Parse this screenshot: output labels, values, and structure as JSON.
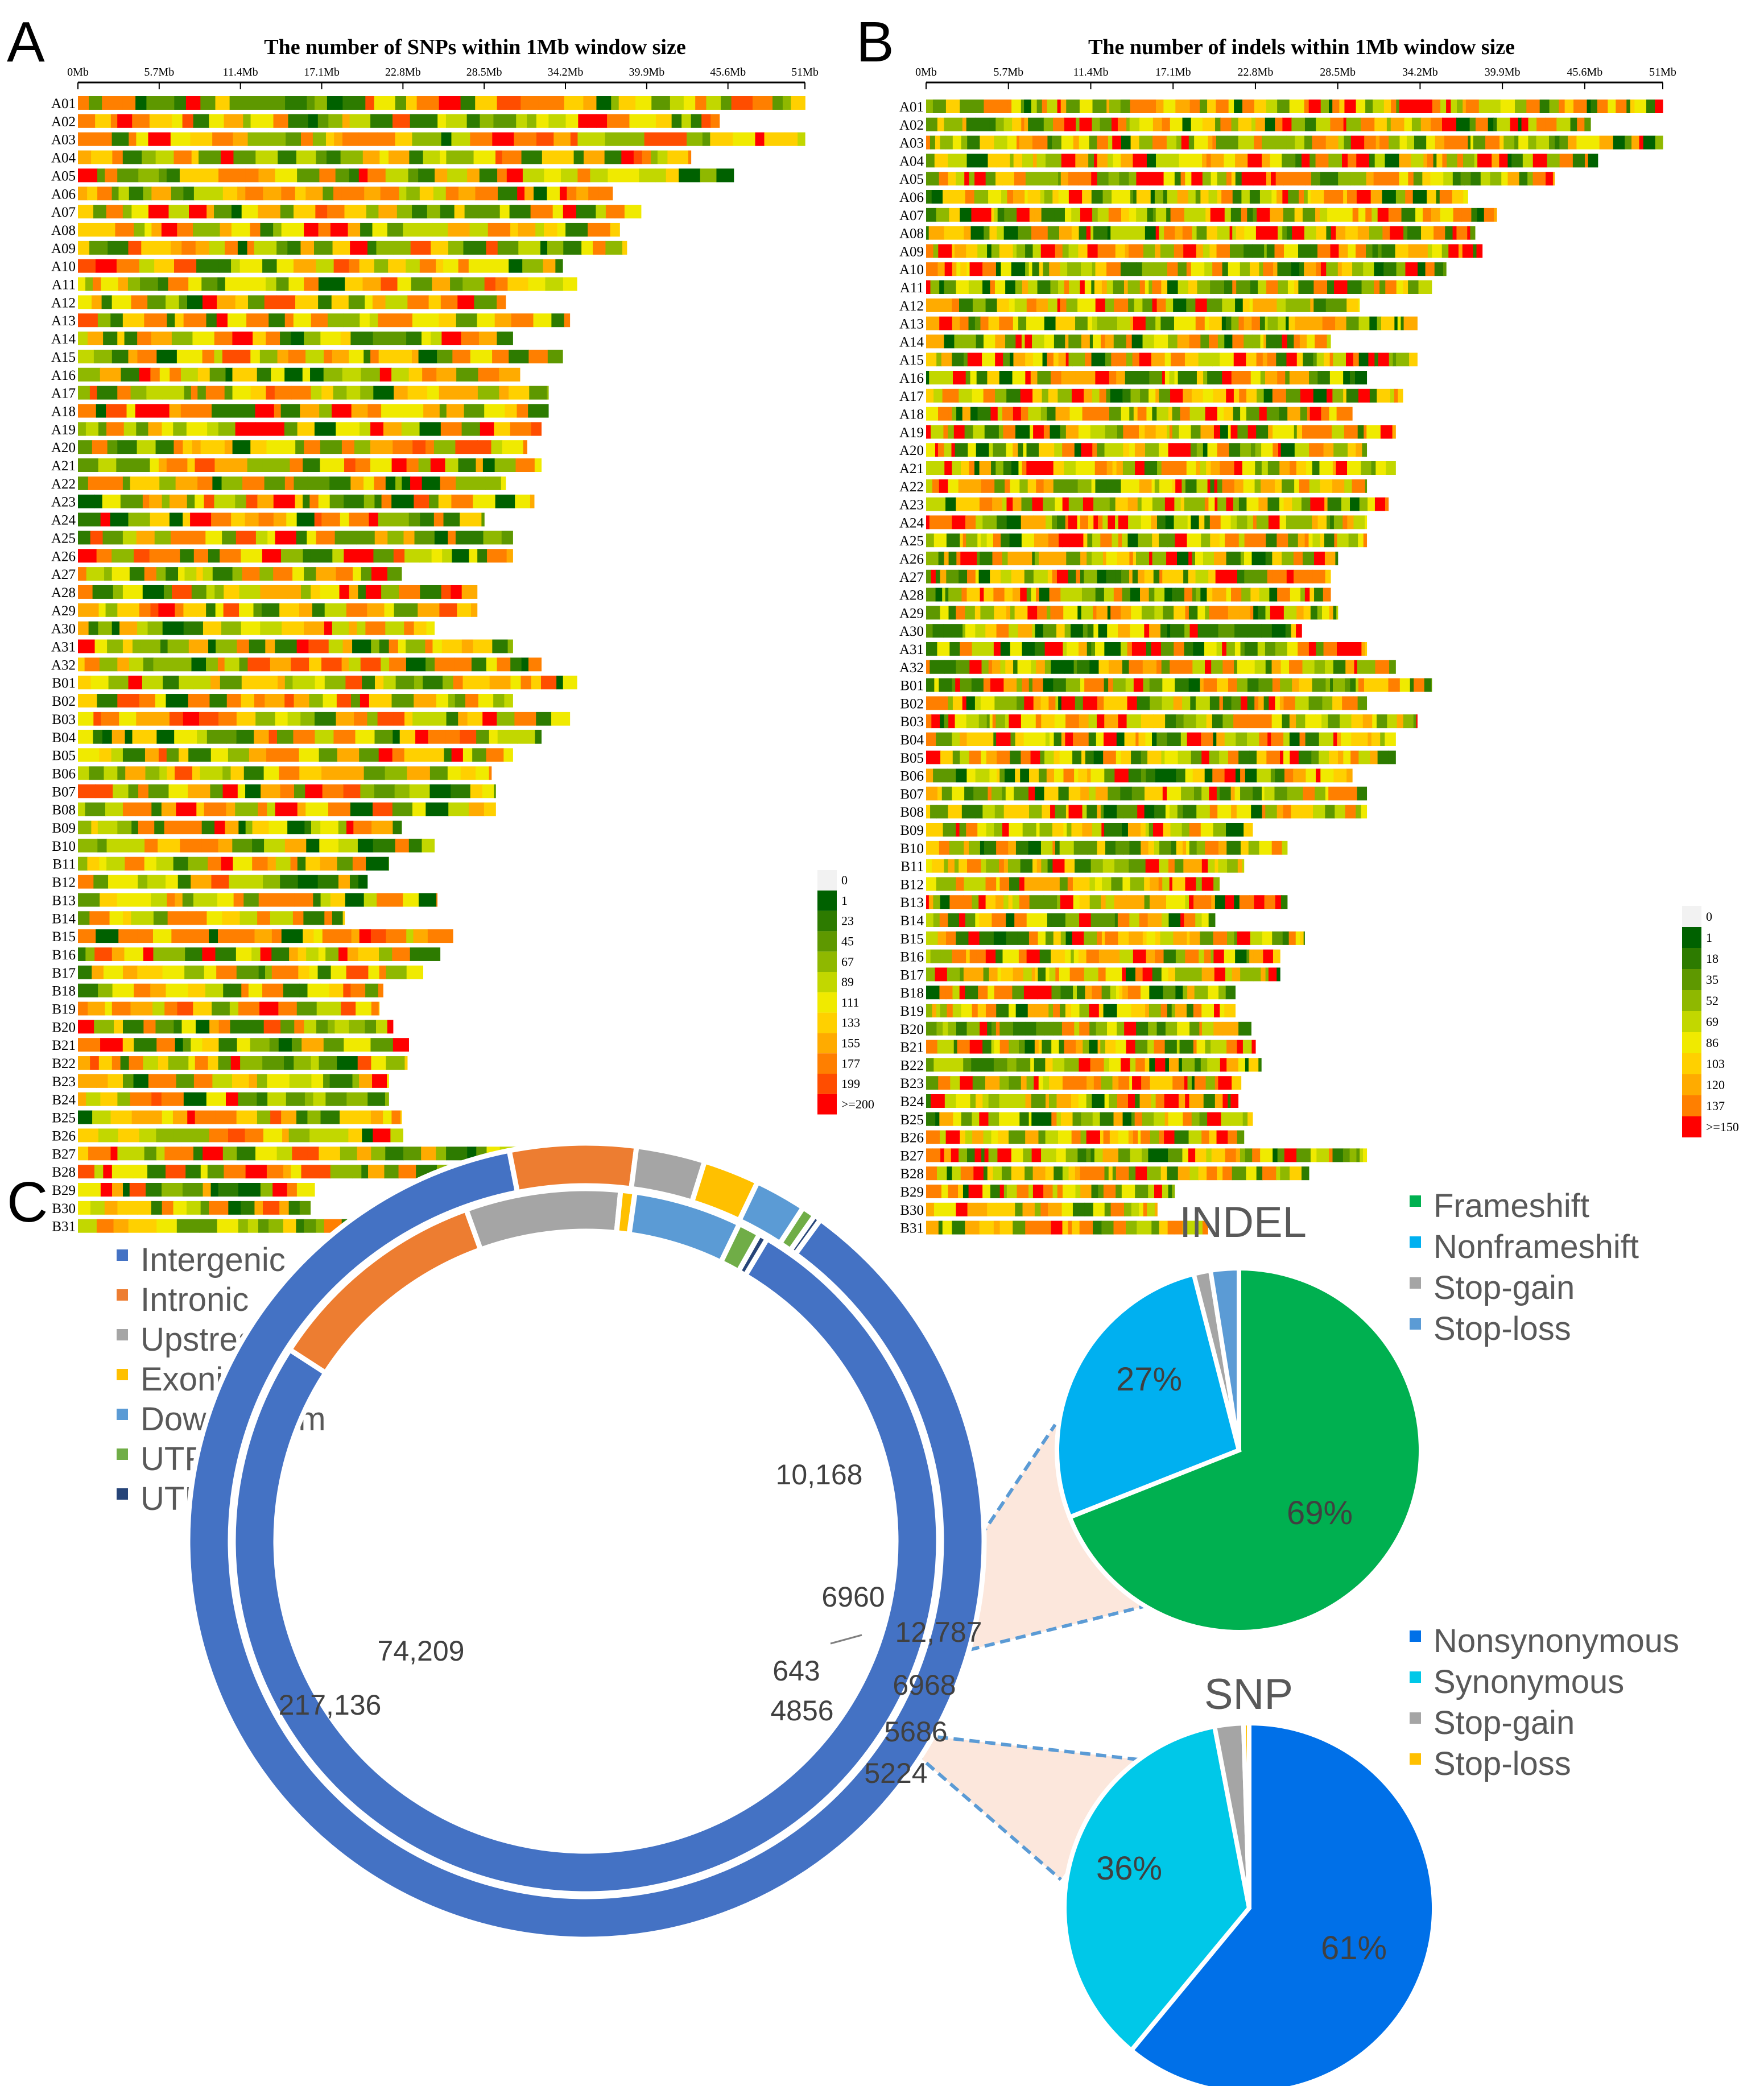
{
  "panels": {
    "a": "A",
    "b": "B",
    "c": "C"
  },
  "chart_data": [
    {
      "type": "heatmap",
      "panel": "A",
      "title": "The number of SNPs within 1Mb window size",
      "x_ticks": [
        "0Mb",
        "5.7Mb",
        "11.4Mb",
        "17.1Mb",
        "22.8Mb",
        "28.5Mb",
        "34.2Mb",
        "39.9Mb",
        "45.6Mb",
        "51Mb"
      ],
      "xlim_mb": [
        0,
        51
      ],
      "rows": [
        "A01",
        "A02",
        "A03",
        "A04",
        "A05",
        "A06",
        "A07",
        "A08",
        "A09",
        "A10",
        "A11",
        "A12",
        "A13",
        "A14",
        "A15",
        "A16",
        "A17",
        "A18",
        "A19",
        "A20",
        "A21",
        "A22",
        "A23",
        "A24",
        "A25",
        "A26",
        "A27",
        "A28",
        "A29",
        "A30",
        "A31",
        "A32",
        "B01",
        "B02",
        "B03",
        "B04",
        "B05",
        "B06",
        "B07",
        "B08",
        "B09",
        "B10",
        "B11",
        "B12",
        "B13",
        "B14",
        "B15",
        "B16",
        "B17",
        "B18",
        "B19",
        "B20",
        "B21",
        "B22",
        "B23",
        "B24",
        "B25",
        "B26",
        "B27",
        "B28",
        "B29",
        "B30",
        "B31"
      ],
      "row_lengths_mb": [
        51,
        45,
        51,
        43,
        46,
        37.5,
        39.5,
        38,
        38.5,
        34,
        35,
        30,
        34.5,
        30.5,
        34,
        31,
        33,
        33,
        32.5,
        31.5,
        32.5,
        30,
        32,
        28.5,
        30.5,
        30.5,
        22.7,
        28,
        28,
        25,
        30.5,
        32.5,
        35,
        30.5,
        34.5,
        32.5,
        30.5,
        29,
        29.3,
        29.3,
        22.7,
        25,
        21.8,
        20.3,
        25.2,
        18.7,
        26.3,
        25.4,
        24.2,
        21.4,
        21.1,
        22.1,
        23.2,
        23.1,
        21.8,
        21.8,
        22.7,
        22.8,
        30.8,
        26.6,
        16.6,
        16.3,
        19.6
      ],
      "legend_title": "",
      "legend_labels": [
        "0",
        "1",
        "23",
        "45",
        "67",
        "89",
        "111",
        "133",
        "155",
        "177",
        "199",
        ">=200"
      ],
      "legend_colors": [
        "#f2f2f2",
        "#006100",
        "#2d7b00",
        "#5e9800",
        "#8fb800",
        "#c2d700",
        "#f0ea00",
        "#ffd000",
        "#ffab00",
        "#ff7f00",
        "#ff4d00",
        "#ff0000"
      ]
    },
    {
      "type": "heatmap",
      "panel": "B",
      "title": "The number of indels within 1Mb window size",
      "x_ticks": [
        "0Mb",
        "5.7Mb",
        "11.4Mb",
        "17.1Mb",
        "22.8Mb",
        "28.5Mb",
        "34.2Mb",
        "39.9Mb",
        "45.6Mb",
        "51Mb"
      ],
      "xlim_mb": [
        0,
        51
      ],
      "rows": [
        "A01",
        "A02",
        "A03",
        "A04",
        "A05",
        "A06",
        "A07",
        "A08",
        "A09",
        "A10",
        "A11",
        "A12",
        "A13",
        "A14",
        "A15",
        "A16",
        "A17",
        "A18",
        "A19",
        "A20",
        "A21",
        "A22",
        "A23",
        "A24",
        "A25",
        "A26",
        "A27",
        "A28",
        "A29",
        "A30",
        "A31",
        "A32",
        "B01",
        "B02",
        "B03",
        "B04",
        "B05",
        "B06",
        "B07",
        "B08",
        "B09",
        "B10",
        "B11",
        "B12",
        "B13",
        "B14",
        "B15",
        "B16",
        "B17",
        "B18",
        "B19",
        "B20",
        "B21",
        "B22",
        "B23",
        "B24",
        "B25",
        "B26",
        "B27",
        "B28",
        "B29",
        "B30",
        "B31"
      ],
      "row_lengths_mb": [
        51,
        46,
        51,
        46.5,
        43.5,
        37.5,
        39.5,
        38,
        38.5,
        36,
        35,
        30,
        34,
        28,
        34,
        30.5,
        33,
        29.5,
        32.5,
        30.5,
        32.5,
        30.5,
        32,
        30.5,
        30.5,
        28.5,
        28,
        28,
        28.5,
        26,
        30.5,
        32.5,
        35,
        30.5,
        34,
        32.5,
        32.5,
        29.5,
        30.5,
        30.5,
        22.6,
        25,
        22,
        20.3,
        25,
        20,
        26.2,
        24.5,
        24.5,
        21.4,
        21.4,
        22.5,
        22.8,
        23.2,
        21.8,
        21.6,
        22.6,
        22,
        30.5,
        26.5,
        17.2,
        16,
        19.5
      ],
      "legend_title": "",
      "legend_labels": [
        "0",
        "1",
        "18",
        "35",
        "52",
        "69",
        "86",
        "103",
        "120",
        "137",
        ">=150"
      ],
      "legend_colors": [
        "#f2f2f2",
        "#006100",
        "#2d7b00",
        "#5e9800",
        "#8fb800",
        "#c2d700",
        "#f0ea00",
        "#ffd000",
        "#ffab00",
        "#ff7f00",
        "#ff0000"
      ]
    },
    {
      "type": "pie",
      "panel": "C",
      "subtype": "double-donut",
      "categories": [
        "Intergenic",
        "Intronic",
        "Upstream",
        "Exonic",
        "Downstream",
        "UTR3",
        "UTR5"
      ],
      "colors": [
        "#4472c4",
        "#ed7d31",
        "#a5a5a5",
        "#ffc000",
        "#5b9bd5",
        "#70ad47",
        "#264478"
      ],
      "series": [
        {
          "name": "SNP (outer ring)",
          "values": [
            217136,
            12787,
            6968,
            5686,
            5224,
            1400,
            700
          ],
          "labels": [
            "217,136",
            "12,787",
            "6968",
            "5686",
            "5224",
            "",
            ""
          ]
        },
        {
          "name": "INDEL (inner ring)",
          "values": [
            74209,
            10168,
            6960,
            643,
            4856,
            1000,
            400
          ],
          "labels": [
            "74,209",
            "10,168",
            "6960",
            "643",
            "4856",
            "",
            ""
          ]
        }
      ]
    },
    {
      "type": "pie",
      "panel": "C",
      "title": "INDEL",
      "categories": [
        "Frameshift",
        "Nonframeshift",
        "Stop-gain",
        "Stop-loss"
      ],
      "values": [
        69,
        27,
        1.5,
        2.5
      ],
      "labels": [
        "69%",
        "27%",
        "",
        ""
      ],
      "colors": [
        "#00b050",
        "#00b0f0",
        "#a5a5a5",
        "#5b9bd5"
      ]
    },
    {
      "type": "pie",
      "panel": "C",
      "title": "SNP",
      "categories": [
        "Nonsynonymous",
        "Synonymous",
        "Stop-gain",
        "Stop-loss"
      ],
      "values": [
        61,
        36,
        2.5,
        0.5
      ],
      "labels": [
        "61%",
        "36%",
        "",
        ""
      ],
      "colors": [
        "#0070e8",
        "#00c8e8",
        "#a5a5a5",
        "#ffc000"
      ]
    }
  ]
}
